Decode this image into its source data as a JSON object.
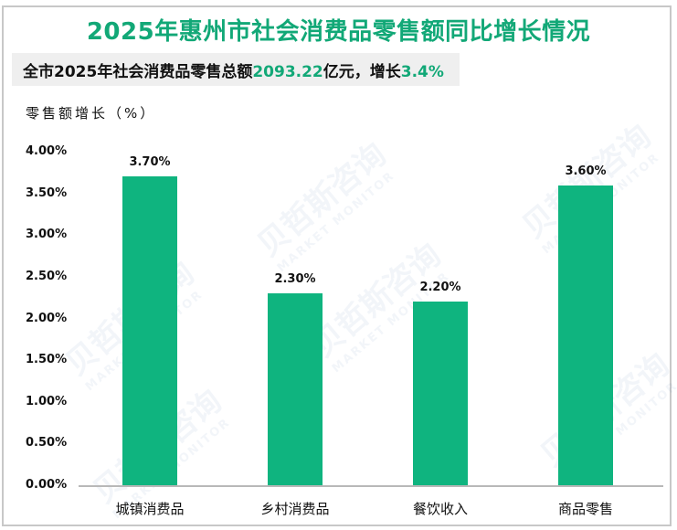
{
  "title": "2025年惠州市社会消费品零售额同比增长情况",
  "summary": {
    "prefix": "全市2025年社会消费品零售总额",
    "total_value": "2093.22",
    "middle": "亿元，增长",
    "growth_value": "3.4%"
  },
  "colors": {
    "accent": "#12a877",
    "bar": "#0fb47f",
    "summary_bg": "#efefef",
    "border": "#c8c8c8"
  },
  "watermark": {
    "brand_cn": "贝哲斯咨询",
    "brand_en": "MARKET MONITOR"
  },
  "chart_data": {
    "type": "bar",
    "title": "2025年惠州市社会消费品零售额同比增长情况",
    "xlabel": "",
    "ylabel": "零售额增长（%）",
    "categories": [
      "城镇消费品",
      "乡村消费品",
      "餐饮收入",
      "商品零售"
    ],
    "values": [
      3.7,
      2.3,
      2.2,
      3.6
    ],
    "data_labels": [
      "3.70%",
      "2.30%",
      "2.20%",
      "3.60%"
    ],
    "ylim": [
      0,
      4.0
    ],
    "yticks": [
      "4.00%",
      "3.50%",
      "3.00%",
      "2.50%",
      "2.00%",
      "1.50%",
      "1.00%",
      "0.50%",
      "0.00%"
    ],
    "grid": false,
    "legend": "none"
  }
}
